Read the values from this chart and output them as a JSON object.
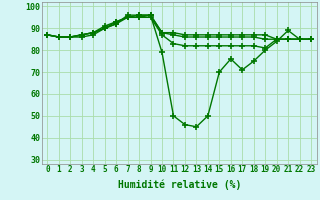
{
  "background_color": "#d4f5f5",
  "grid_color": "#aaddaa",
  "line_color": "#007700",
  "line_width": 1.0,
  "marker": "+",
  "marker_size": 4,
  "marker_lw": 1.2,
  "xlabel": "Humidité relative (%)",
  "xlabel_fontsize": 7,
  "tick_fontsize": 5.5,
  "ytick_fontsize": 6,
  "ylim": [
    28,
    102
  ],
  "xlim": [
    -0.5,
    23.5
  ],
  "yticks": [
    30,
    40,
    50,
    60,
    70,
    80,
    90,
    100
  ],
  "xtick_labels": [
    "0",
    "1",
    "2",
    "3",
    "4",
    "5",
    "6",
    "7",
    "8",
    "9",
    "10",
    "11",
    "12",
    "13",
    "14",
    "15",
    "16",
    "17",
    "18",
    "19",
    "20",
    "21",
    "22",
    "23"
  ],
  "series": [
    [
      87,
      86,
      86,
      86,
      87,
      90,
      92,
      96,
      96,
      96,
      79,
      50,
      46,
      45,
      50,
      70,
      76,
      71,
      75,
      80,
      84,
      89,
      85,
      85
    ],
    [
      87,
      86,
      86,
      87,
      88,
      91,
      93,
      95,
      96,
      96,
      88,
      88,
      87,
      87,
      87,
      87,
      87,
      87,
      87,
      87,
      85,
      85,
      85,
      85
    ],
    [
      87,
      86,
      86,
      87,
      88,
      90,
      93,
      95,
      95,
      96,
      88,
      87,
      86,
      86,
      86,
      86,
      86,
      86,
      86,
      85,
      85,
      85,
      85,
      85
    ],
    [
      87,
      86,
      86,
      87,
      88,
      90,
      92,
      95,
      95,
      95,
      87,
      83,
      82,
      82,
      82,
      82,
      82,
      82,
      82,
      81,
      85,
      85,
      85,
      85
    ]
  ]
}
